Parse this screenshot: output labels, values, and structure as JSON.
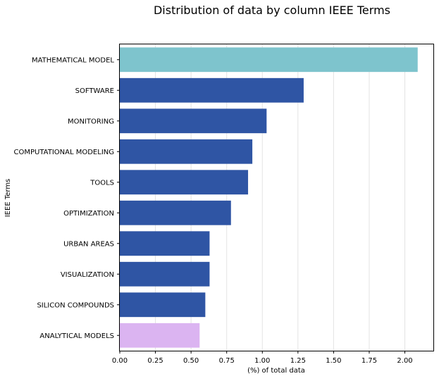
{
  "chart_data": {
    "type": "bar",
    "orientation": "horizontal",
    "title": "Distribution of data by column IEEE Terms",
    "xlabel": "(%) of total data",
    "ylabel": "IEEE Terms",
    "categories": [
      "MATHEMATICAL MODEL",
      "SOFTWARE",
      "MONITORING",
      "COMPUTATIONAL MODELING",
      "TOOLS",
      "OPTIMIZATION",
      "URBAN AREAS",
      "VISUALIZATION",
      "SILICON COMPOUNDS",
      "ANALYTICAL MODELS"
    ],
    "values": [
      2.09,
      1.29,
      1.03,
      0.93,
      0.9,
      0.78,
      0.63,
      0.63,
      0.6,
      0.56
    ],
    "colors": [
      "#7ec4cd",
      "#2f55a4",
      "#2f55a4",
      "#2f55a4",
      "#2f55a4",
      "#2f55a4",
      "#2f55a4",
      "#2f55a4",
      "#2f55a4",
      "#dbb4f1"
    ],
    "xlim": [
      0,
      2.2
    ],
    "xticks": [
      0.0,
      0.25,
      0.5,
      0.75,
      1.0,
      1.25,
      1.5,
      1.75,
      2.0
    ],
    "xtick_labels": [
      "0.00",
      "0.25",
      "0.50",
      "0.75",
      "1.00",
      "1.25",
      "1.50",
      "1.75",
      "2.00"
    ],
    "grid": "vertical",
    "legend": "none"
  }
}
